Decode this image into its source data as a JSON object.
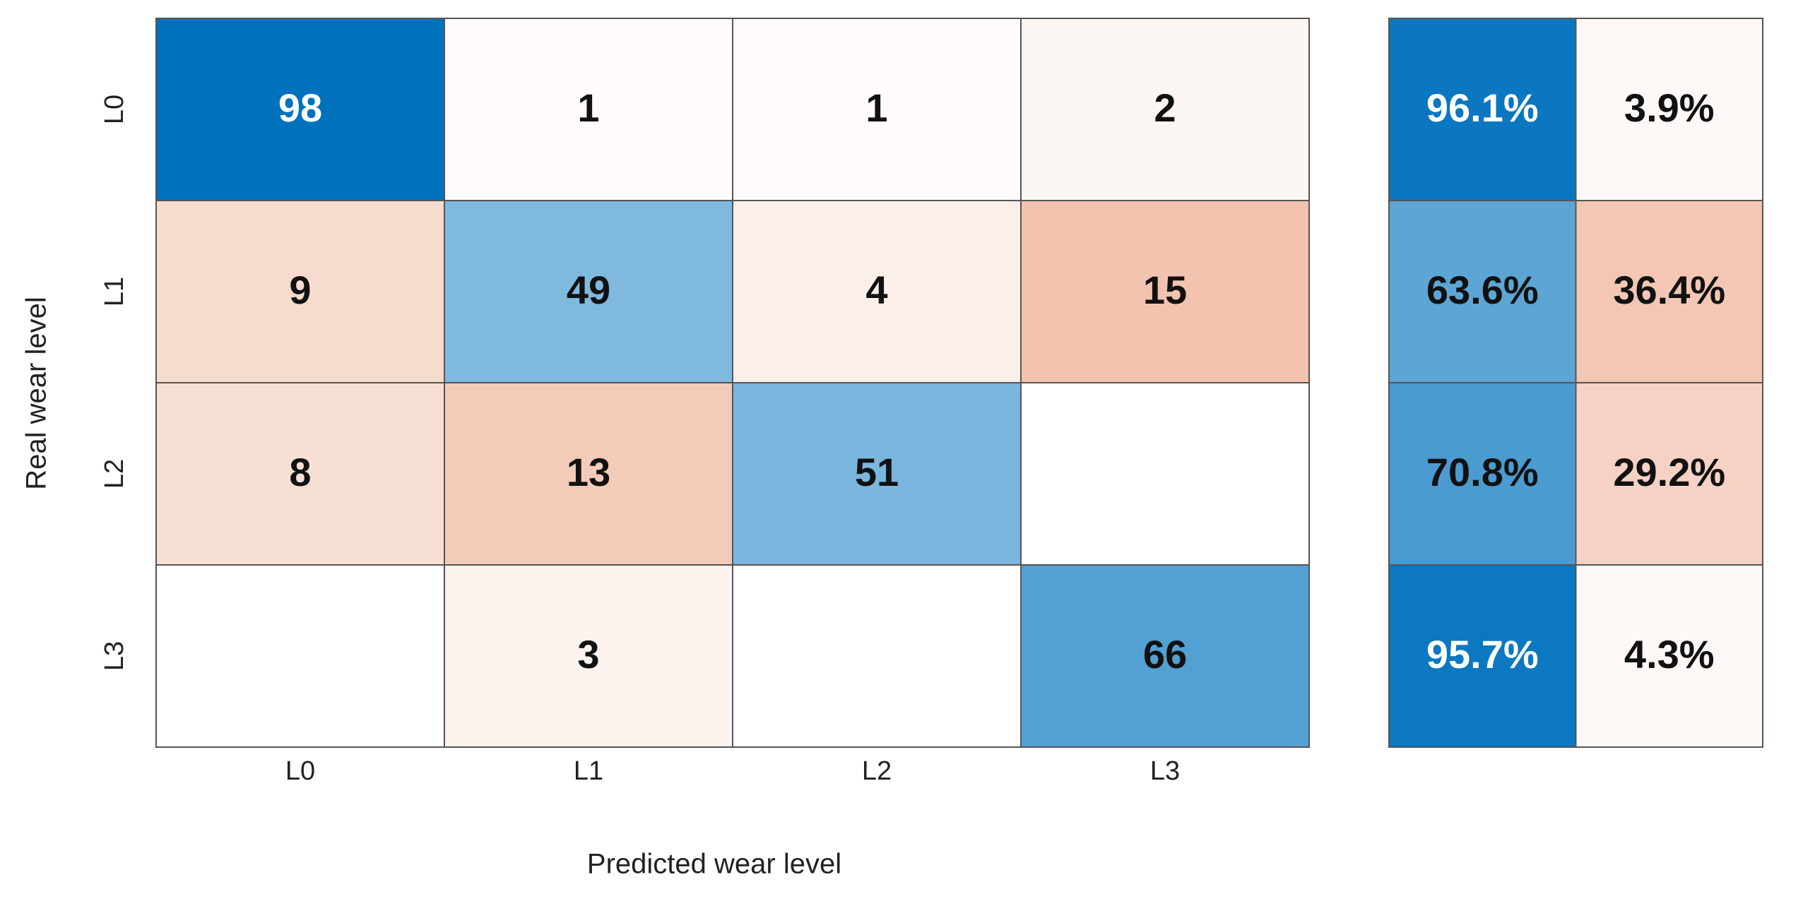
{
  "chart_data": [
    {
      "type": "heatmap",
      "xlabel": "Predicted wear level",
      "ylabel": "Real wear level",
      "x": [
        "L0",
        "L1",
        "L2",
        "L3"
      ],
      "y": [
        "L0",
        "L1",
        "L2",
        "L3"
      ],
      "values": [
        [
          98,
          1,
          1,
          2
        ],
        [
          9,
          49,
          4,
          15
        ],
        [
          8,
          13,
          51,
          null
        ],
        [
          null,
          3,
          null,
          66
        ]
      ],
      "colors": [
        "#0072bd",
        "#d95319"
      ]
    },
    {
      "type": "row-summary",
      "values": [
        [
          96.1,
          3.9
        ],
        [
          63.6,
          36.4
        ],
        [
          70.8,
          29.2
        ],
        [
          95.7,
          4.3
        ]
      ],
      "value_labels": [
        [
          "96.1%",
          "3.9%"
        ],
        [
          "63.6%",
          "36.4%"
        ],
        [
          "70.8%",
          "29.2%"
        ],
        [
          "95.7%",
          "4.3%"
        ]
      ],
      "colors": [
        "#0072bd",
        "#d95319"
      ]
    }
  ]
}
